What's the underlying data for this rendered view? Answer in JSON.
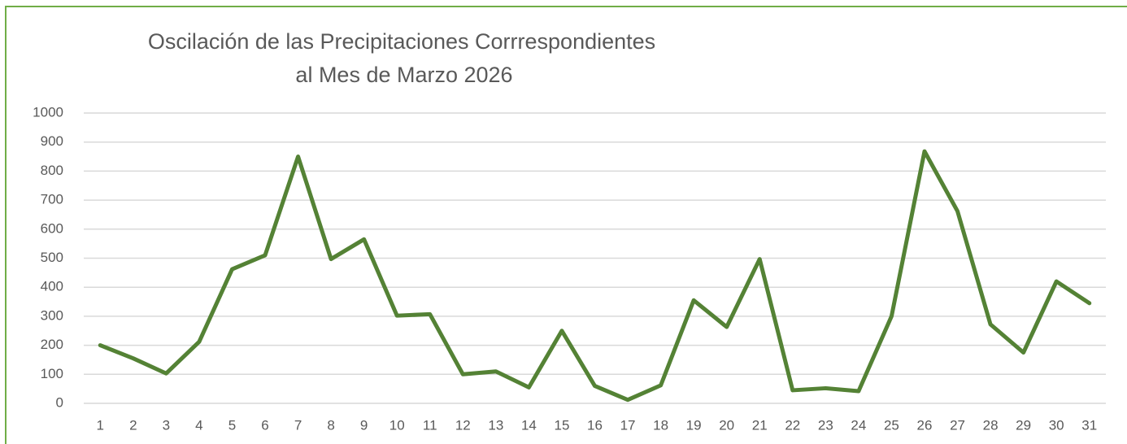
{
  "chart_data": {
    "type": "line",
    "title": [
      "Oscilación de las Precipitaciones Corrrespondientes",
      "al Mes de Marzo 2026"
    ],
    "categories": [
      "1",
      "2",
      "3",
      "4",
      "5",
      "6",
      "7",
      "8",
      "9",
      "10",
      "11",
      "12",
      "13",
      "14",
      "15",
      "16",
      "17",
      "18",
      "19",
      "20",
      "21",
      "22",
      "23",
      "24",
      "25",
      "26",
      "27",
      "28",
      "29",
      "30",
      "31"
    ],
    "series": [
      {
        "color": "#548235",
        "values": [
          200,
          155,
          103,
          212,
          462,
          510,
          850,
          497,
          565,
          302,
          307,
          100,
          110,
          55,
          250,
          60,
          12,
          62,
          355,
          263,
          497,
          45,
          52,
          42,
          300,
          868,
          662,
          272,
          175,
          420,
          345
        ]
      }
    ],
    "ylim": [
      0,
      1000
    ],
    "yticks": [
      0,
      100,
      200,
      300,
      400,
      500,
      600,
      700,
      800,
      900,
      1000
    ],
    "grid": true
  }
}
